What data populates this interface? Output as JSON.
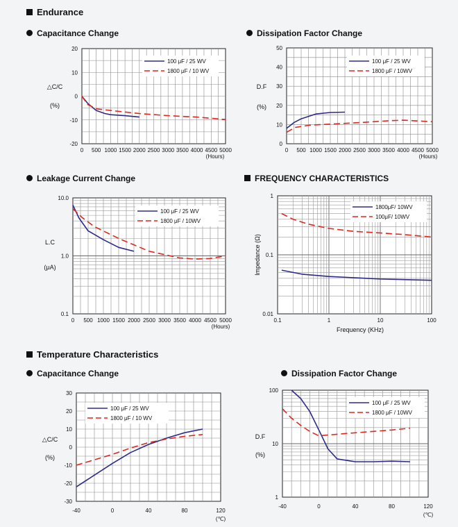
{
  "headings": {
    "endurance": "Endurance",
    "cap_change": "Capacitance Change",
    "df_change": "Dissipation Factor Change",
    "leakage": "Leakage Current Change",
    "frequency": "FREQUENCY CHARACTERISTICS",
    "temperature": "Temperature Characteristics",
    "temp_cap": "Capacitance Change",
    "temp_df": "Dissipation Factor Change"
  },
  "colors": {
    "series_a": "#2b2a8c",
    "series_b": "#e0261f",
    "grid": "#8a8a8a"
  },
  "chart_data": [
    {
      "id": "end_cap",
      "type": "line",
      "ylabel": [
        "△C/C",
        "(%)"
      ],
      "xunit": "(Hours)",
      "xlim": [
        0,
        5000
      ],
      "ylim": [
        -20,
        20
      ],
      "xticks": [
        "0",
        "500",
        "1000",
        "1500",
        "2000",
        "2500",
        "3000",
        "3500",
        "4000",
        "4500",
        "5000"
      ],
      "yticks": [
        "20",
        "10",
        "0",
        "-10",
        "-20"
      ],
      "legend": [
        "100 μF / 25 WV",
        "1800 μF / 10 WV"
      ],
      "series": [
        {
          "name": "100 μF / 25 WV",
          "x": [
            0,
            200,
            500,
            800,
            1000,
            1500,
            2000
          ],
          "y": [
            0,
            -3,
            -6,
            -7.3,
            -7.8,
            -8.2,
            -8.8
          ]
        },
        {
          "name": "1800 μF / 10 WV",
          "x": [
            0,
            200,
            500,
            1000,
            2000,
            3000,
            4000,
            5000
          ],
          "y": [
            0,
            -3.5,
            -5.3,
            -6,
            -7.3,
            -8.2,
            -8.8,
            -9.8
          ]
        }
      ]
    },
    {
      "id": "end_df",
      "type": "line",
      "ylabel": [
        "D.F",
        "(%)"
      ],
      "xunit": "(Hours)",
      "xlim": [
        0,
        5000
      ],
      "ylim": [
        0,
        50
      ],
      "xticks": [
        "0",
        "500",
        "1000",
        "1500",
        "2000",
        "2500",
        "3000",
        "3500",
        "4000",
        "4500",
        "5000"
      ],
      "yticks": [
        "50",
        "40",
        "30",
        "20",
        "10",
        "0"
      ],
      "legend": [
        "100 μF / 25 WV",
        "1800 μF / 10WV"
      ],
      "series": [
        {
          "name": "100 μF / 25 WV",
          "x": [
            0,
            250,
            500,
            1000,
            1500,
            2000
          ],
          "y": [
            8,
            11,
            13,
            15.5,
            16.3,
            16.5
          ]
        },
        {
          "name": "1800 μF / 10WV",
          "x": [
            0,
            300,
            800,
            1500,
            2500,
            3500,
            4000,
            5000
          ],
          "y": [
            6,
            8.5,
            9.7,
            10.2,
            11,
            12,
            12.3,
            11.5
          ]
        }
      ]
    },
    {
      "id": "end_lc",
      "type": "line",
      "ylabel": [
        "L.C",
        "(μA)"
      ],
      "xunit": "(Hours)",
      "xlim": [
        0,
        5000
      ],
      "ylim": [
        0.1,
        10
      ],
      "log_y": true,
      "xticks": [
        "0",
        "500",
        "1000",
        "1500",
        "2000",
        "2500",
        "3000",
        "3500",
        "4000",
        "4500",
        "5000"
      ],
      "yticks": [
        "10.0",
        "1.0",
        "0.1"
      ],
      "legend": [
        "100 μF / 25 WV",
        "1800 μF / 10WV"
      ],
      "series": [
        {
          "name": "100 μF / 25 WV",
          "x": [
            0,
            200,
            500,
            1000,
            1500,
            2000
          ],
          "y": [
            7.5,
            4.5,
            2.7,
            1.9,
            1.4,
            1.2
          ]
        },
        {
          "name": "1800 μF / 10WV",
          "x": [
            0,
            300,
            700,
            1500,
            2500,
            3500,
            4000,
            4500,
            5000
          ],
          "y": [
            6.5,
            4.6,
            3.2,
            2.0,
            1.2,
            0.92,
            0.88,
            0.9,
            1.0
          ]
        }
      ]
    },
    {
      "id": "freq",
      "type": "line",
      "ylabel": [
        "Impedance (Ω)"
      ],
      "xlabel": "Frequency (KHz)",
      "xlim": [
        0.1,
        100
      ],
      "ylim": [
        0.01,
        1
      ],
      "log_x": true,
      "log_y": true,
      "xticks": [
        "0.1",
        "1",
        "10",
        "100"
      ],
      "yticks": [
        "1",
        "0.1",
        "0.01"
      ],
      "legend": [
        "1800μF/ 10WV",
        "100μF/ 10WV"
      ],
      "series": [
        {
          "name": "1800μF/ 10WV",
          "x": [
            0.12,
            0.3,
            1,
            3,
            10,
            30,
            100
          ],
          "y": [
            0.055,
            0.047,
            0.043,
            0.041,
            0.039,
            0.038,
            0.037
          ]
        },
        {
          "name": "100μF/ 10WV",
          "x": [
            0.12,
            0.2,
            0.4,
            1,
            3,
            10,
            30,
            100
          ],
          "y": [
            0.5,
            0.4,
            0.33,
            0.28,
            0.25,
            0.235,
            0.22,
            0.2
          ]
        }
      ]
    },
    {
      "id": "temp_cap",
      "type": "line",
      "ylabel": [
        "△C/C",
        "(%)"
      ],
      "xunit": "(℃)",
      "xlim": [
        -40,
        120
      ],
      "ylim": [
        -30,
        30
      ],
      "xticks": [
        "-40",
        "0",
        "40",
        "80",
        "120"
      ],
      "yticks": [
        "30",
        "20",
        "10",
        "0",
        "-10",
        "-20",
        "-30"
      ],
      "legend": [
        "100 μF / 25 WV",
        "1800 μF / 10 WV"
      ],
      "series": [
        {
          "name": "100 μF / 25 WV",
          "x": [
            -40,
            -20,
            0,
            20,
            40,
            60,
            80,
            100
          ],
          "y": [
            -22,
            -15.5,
            -9,
            -3,
            1.5,
            5,
            8,
            10
          ]
        },
        {
          "name": "1800 μF / 10 WV",
          "x": [
            -40,
            -20,
            0,
            20,
            40,
            60,
            80,
            100
          ],
          "y": [
            -10,
            -7,
            -4,
            -0.5,
            2.5,
            4.5,
            6,
            7
          ]
        }
      ]
    },
    {
      "id": "temp_df",
      "type": "line",
      "ylabel": [
        "D.F",
        "(%)"
      ],
      "xunit": "(℃)",
      "xlim": [
        -40,
        120
      ],
      "ylim": [
        1,
        100
      ],
      "log_y": true,
      "xticks": [
        "-40",
        "0",
        "40",
        "80",
        "120"
      ],
      "yticks": [
        "100",
        "10",
        "1"
      ],
      "legend": [
        "100 μF / 25 WV",
        "1800 μF / 10WV"
      ],
      "series": [
        {
          "name": "100 μF / 25 WV",
          "x": [
            -30,
            -20,
            -10,
            0,
            10,
            20,
            40,
            60,
            80,
            100
          ],
          "y": [
            100,
            70,
            40,
            18,
            8,
            5.2,
            4.6,
            4.6,
            4.7,
            4.6
          ]
        },
        {
          "name": "1800 μF / 10WV",
          "x": [
            -40,
            -30,
            -20,
            -10,
            0,
            20,
            40,
            60,
            80,
            100
          ],
          "y": [
            45,
            30,
            22,
            17,
            14,
            15,
            16,
            17,
            18,
            19.5
          ]
        }
      ]
    }
  ]
}
